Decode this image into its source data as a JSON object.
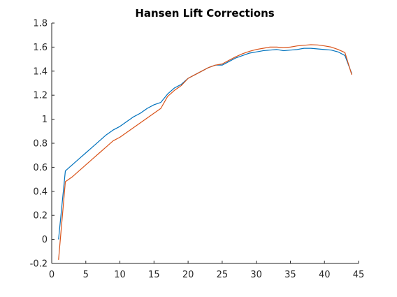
{
  "chart_data": {
    "type": "line",
    "title": "Hansen Lift Corrections",
    "xlabel": "",
    "ylabel": "",
    "xlim": [
      0,
      45
    ],
    "ylim": [
      -0.2,
      1.8
    ],
    "xticks": [
      0,
      5,
      10,
      15,
      20,
      25,
      30,
      35,
      40,
      45
    ],
    "yticks": [
      -0.2,
      0,
      0.2,
      0.4,
      0.6,
      0.8,
      1,
      1.2,
      1.4,
      1.6,
      1.8
    ],
    "xtick_labels": [
      "0",
      "5",
      "10",
      "15",
      "20",
      "25",
      "30",
      "35",
      "40",
      "45"
    ],
    "ytick_labels": [
      "-0.2",
      "0",
      "0.2",
      "0.4",
      "0.6",
      "0.8",
      "1",
      "1.2",
      "1.4",
      "1.6",
      "1.8"
    ],
    "grid": false,
    "legend": false,
    "x": [
      1,
      2,
      3,
      4,
      5,
      6,
      7,
      8,
      9,
      10,
      11,
      12,
      13,
      14,
      15,
      16,
      17,
      18,
      19,
      20,
      21,
      22,
      23,
      24,
      25,
      26,
      27,
      28,
      29,
      30,
      31,
      32,
      33,
      34,
      35,
      36,
      37,
      38,
      39,
      40,
      41,
      42,
      43,
      44
    ],
    "series": [
      {
        "color": "#0072bd",
        "values": [
          0.0,
          0.57,
          0.62,
          0.67,
          0.72,
          0.77,
          0.82,
          0.87,
          0.91,
          0.94,
          0.98,
          1.02,
          1.05,
          1.09,
          1.12,
          1.14,
          1.21,
          1.26,
          1.29,
          1.34,
          1.37,
          1.4,
          1.43,
          1.45,
          1.45,
          1.48,
          1.51,
          1.53,
          1.55,
          1.56,
          1.57,
          1.575,
          1.58,
          1.57,
          1.575,
          1.58,
          1.59,
          1.59,
          1.585,
          1.58,
          1.575,
          1.56,
          1.53,
          1.38
        ]
      },
      {
        "color": "#d95319",
        "values": [
          -0.17,
          0.48,
          0.52,
          0.57,
          0.62,
          0.67,
          0.72,
          0.77,
          0.82,
          0.85,
          0.89,
          0.93,
          0.97,
          1.01,
          1.05,
          1.09,
          1.19,
          1.24,
          1.28,
          1.34,
          1.37,
          1.4,
          1.43,
          1.45,
          1.46,
          1.49,
          1.52,
          1.545,
          1.565,
          1.58,
          1.59,
          1.6,
          1.6,
          1.595,
          1.6,
          1.61,
          1.615,
          1.62,
          1.618,
          1.61,
          1.6,
          1.58,
          1.555,
          1.37
        ]
      }
    ]
  }
}
